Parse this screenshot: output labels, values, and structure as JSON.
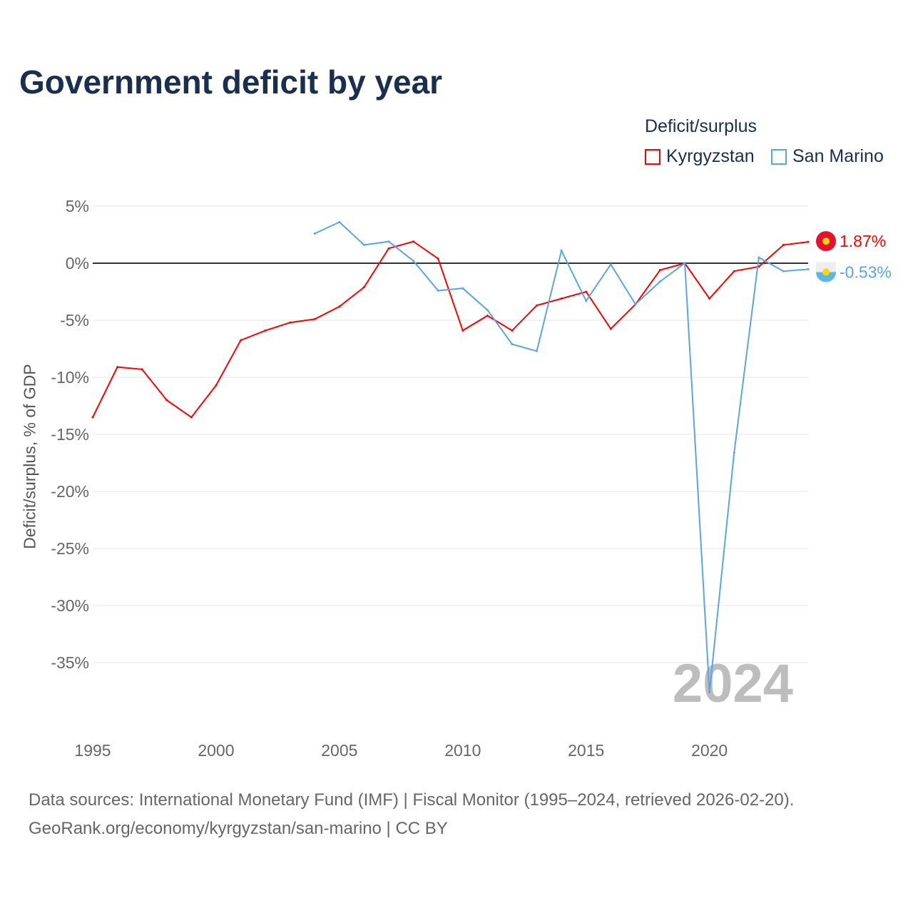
{
  "chart_data": {
    "type": "line",
    "title": "Government deficit by year",
    "ylabel": "Deficit/surplus, % of GDP",
    "xlabel": "",
    "legend_title": "Deficit/surplus",
    "legend_placement": "top-right",
    "xlim": [
      1995,
      2024
    ],
    "ylim": [
      -40,
      5
    ],
    "x_ticks": [
      1995,
      2000,
      2005,
      2010,
      2015,
      2020
    ],
    "y_ticks": [
      5,
      0,
      -5,
      -10,
      -15,
      -20,
      -25,
      -30,
      -35
    ],
    "y_tick_labels": [
      "5%",
      "0%",
      "-5%",
      "-10%",
      "-15%",
      "-20%",
      "-25%",
      "-30%",
      "-35%"
    ],
    "grid": true,
    "series": [
      {
        "name": "Kyrgyzstan",
        "color": "#ff0000",
        "end_label": "1.87%",
        "x": [
          1995,
          1996,
          1997,
          1998,
          1999,
          2000,
          2001,
          2002,
          2003,
          2004,
          2005,
          2006,
          2007,
          2008,
          2009,
          2010,
          2011,
          2012,
          2013,
          2014,
          2015,
          2016,
          2017,
          2018,
          2019,
          2020,
          2021,
          2022,
          2023,
          2024
        ],
        "values": [
          -13.5,
          -9.1,
          -9.3,
          -12.0,
          -13.5,
          -10.7,
          -6.75,
          -5.9,
          -5.2,
          -4.9,
          -3.8,
          -2.1,
          1.3,
          1.9,
          0.4,
          -5.9,
          -4.6,
          -5.9,
          -3.7,
          -3.1,
          -2.5,
          -5.75,
          -3.6,
          -0.6,
          0.0,
          -3.1,
          -0.7,
          -0.3,
          1.6,
          1.87
        ]
      },
      {
        "name": "San Marino",
        "color": "#5aa5e8",
        "end_label": "-0.53%",
        "x": [
          2004,
          2005,
          2006,
          2007,
          2008,
          2009,
          2010,
          2011,
          2012,
          2013,
          2014,
          2015,
          2016,
          2017,
          2018,
          2019,
          2020,
          2021,
          2022,
          2023,
          2024
        ],
        "values": [
          2.6,
          3.6,
          1.6,
          1.9,
          0.2,
          -2.4,
          -2.2,
          -4.1,
          -7.1,
          -7.7,
          1.1,
          -3.3,
          -0.1,
          -3.6,
          -1.6,
          0.0,
          -37.6,
          -16.6,
          0.5,
          -0.7,
          -0.53
        ]
      }
    ],
    "annotation_year": "2024"
  },
  "footer": {
    "source": "Data sources: International Monetary Fund (IMF) | Fiscal Monitor (1995–2024, retrieved 2026-02-20).",
    "url": "GeoRank.org/economy/kyrgyzstan/san-marino | CC BY"
  }
}
